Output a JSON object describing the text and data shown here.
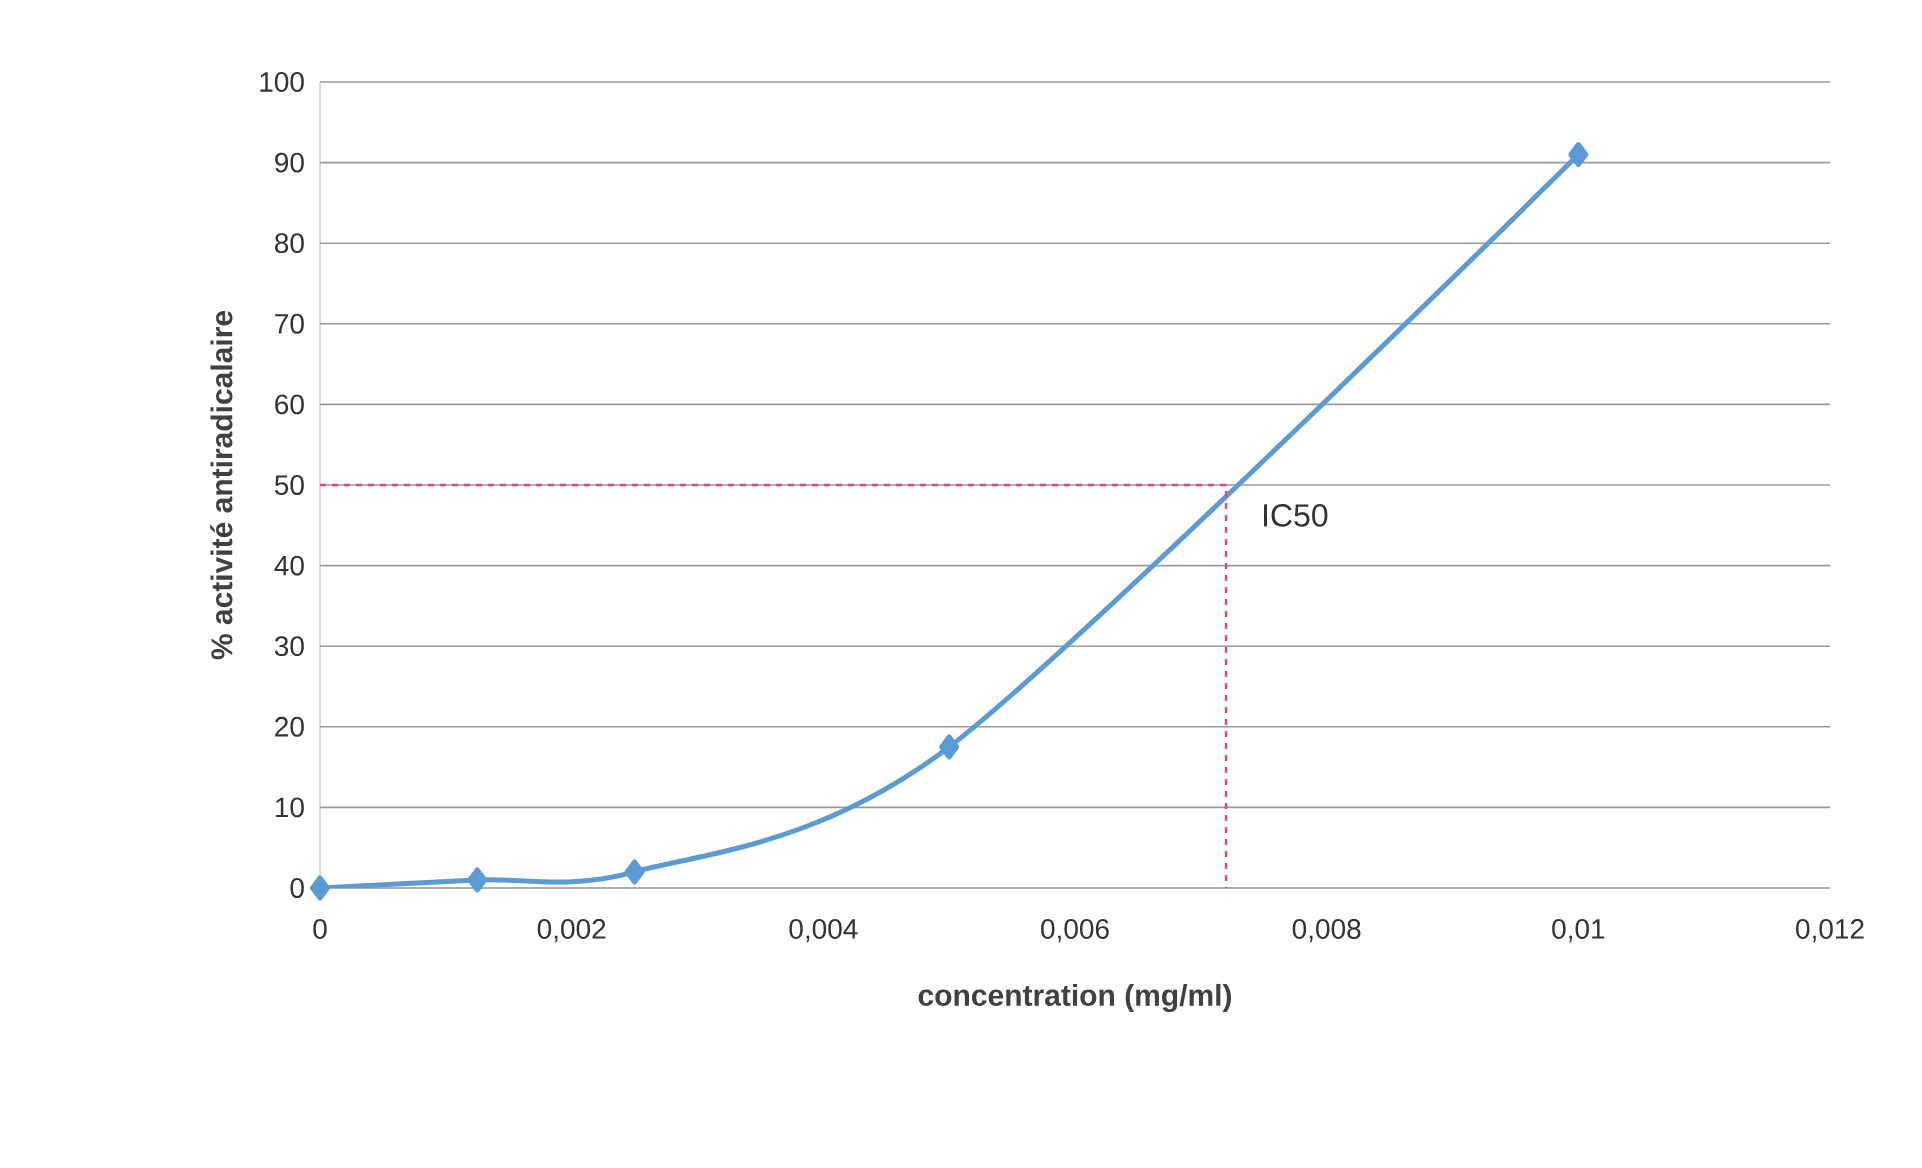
{
  "chart_data": {
    "type": "line",
    "xlabel": "concentration (mg/ml)",
    "ylabel": "% activité antiradicalaire",
    "series": [
      {
        "color": "#5b9bd5",
        "marker": "diamond",
        "x": [
          0,
          0.00125,
          0.0025,
          0.005,
          0.01
        ],
        "values": [
          0,
          1,
          2,
          17.5,
          91
        ]
      },
      {
        "type": "line",
        "color": "#e8457a",
        "line_style": "dashed",
        "marker": "none",
        "x": [
          0,
          0.0072,
          0.0072
        ],
        "values": [
          50,
          50,
          0
        ]
      }
    ],
    "annotations": [
      {
        "text": "IC50",
        "x": 0.0072,
        "y": 50
      }
    ],
    "xlim": [
      0,
      0.012
    ],
    "ylim": [
      0,
      100
    ],
    "xticks": [
      0,
      {
        "value": 0.002,
        "label": "0,002"
      },
      {
        "value": 0.004,
        "label": "0,004"
      },
      {
        "value": 0.006,
        "label": "0,006"
      },
      {
        "value": 0.008,
        "label": "0,008"
      },
      {
        "value": 0.01,
        "label": "0,01"
      },
      {
        "value": 0.012,
        "label": "0,012"
      }
    ],
    "yticks": [
      0,
      10,
      20,
      30,
      40,
      50,
      60,
      70,
      80,
      90,
      100
    ],
    "grid": "y"
  }
}
